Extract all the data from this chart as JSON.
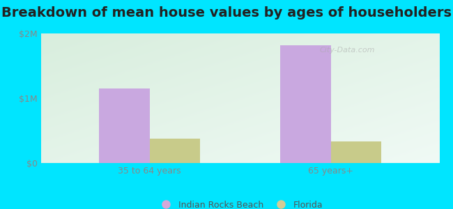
{
  "title": "Breakdown of mean house values by ages of householders",
  "categories": [
    "35 to 64 years",
    "65 years+"
  ],
  "irb_values": [
    1150000,
    1820000
  ],
  "fl_values": [
    380000,
    330000
  ],
  "irb_color": "#c9a8e0",
  "fl_color": "#c8cb8a",
  "background_color": "#00e5ff",
  "ylim": [
    0,
    2000000
  ],
  "yticks": [
    0,
    1000000,
    2000000
  ],
  "ytick_labels": [
    "$0",
    "$1M",
    "$2M"
  ],
  "legend_labels": [
    "Indian Rocks Beach",
    "Florida"
  ],
  "legend_irb_color": "#d4a8d8",
  "legend_fl_color": "#d4cc96",
  "title_fontsize": 14,
  "bar_width": 0.28,
  "watermark": "City-Data.com"
}
